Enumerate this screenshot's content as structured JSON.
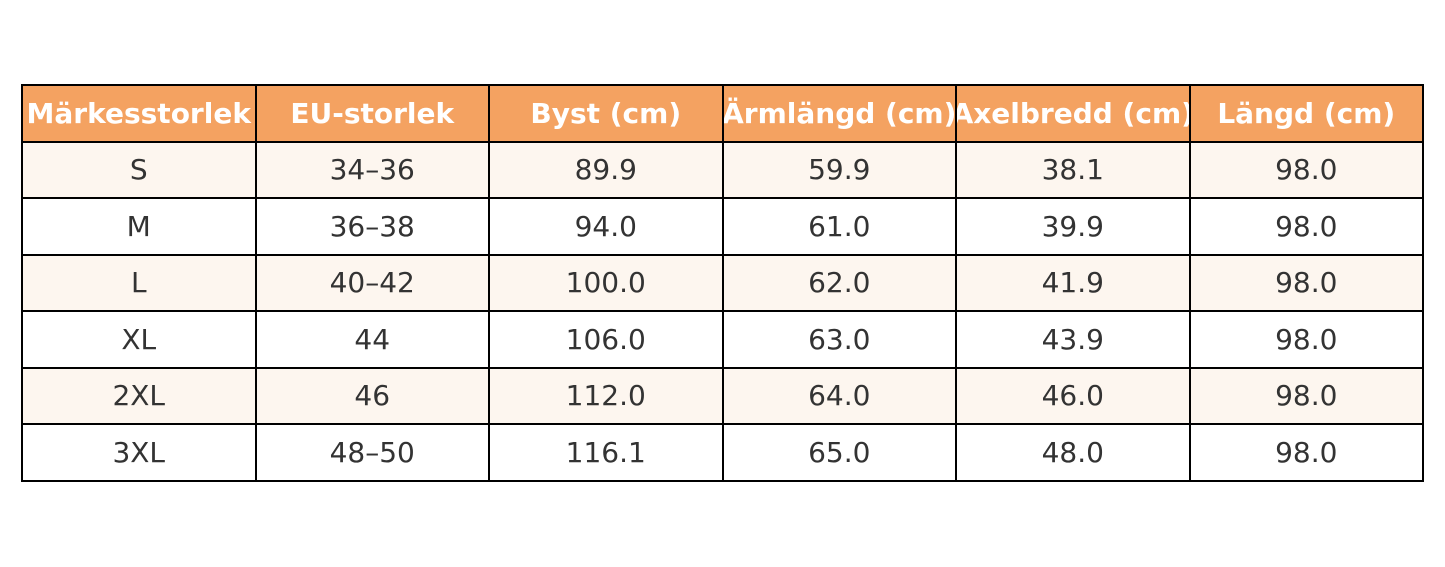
{
  "table": {
    "header": [
      "Märkesstorlek",
      "EU-storlek",
      "Byst (cm)",
      "Ärmlängd (cm)",
      "Axelbredd (cm)",
      "Längd (cm)"
    ],
    "rows": [
      [
        "S",
        "34–36",
        "89.9",
        "59.9",
        "38.1",
        "98.0"
      ],
      [
        "M",
        "36–38",
        "94.0",
        "61.0",
        "39.9",
        "98.0"
      ],
      [
        "L",
        "40–42",
        "100.0",
        "62.0",
        "41.9",
        "98.0"
      ],
      [
        "XL",
        "44",
        "106.0",
        "63.0",
        "43.9",
        "98.0"
      ],
      [
        "2XL",
        "46",
        "112.0",
        "64.0",
        "46.0",
        "98.0"
      ],
      [
        "3XL",
        "48–50",
        "116.1",
        "65.0",
        "48.0",
        "98.0"
      ]
    ]
  }
}
